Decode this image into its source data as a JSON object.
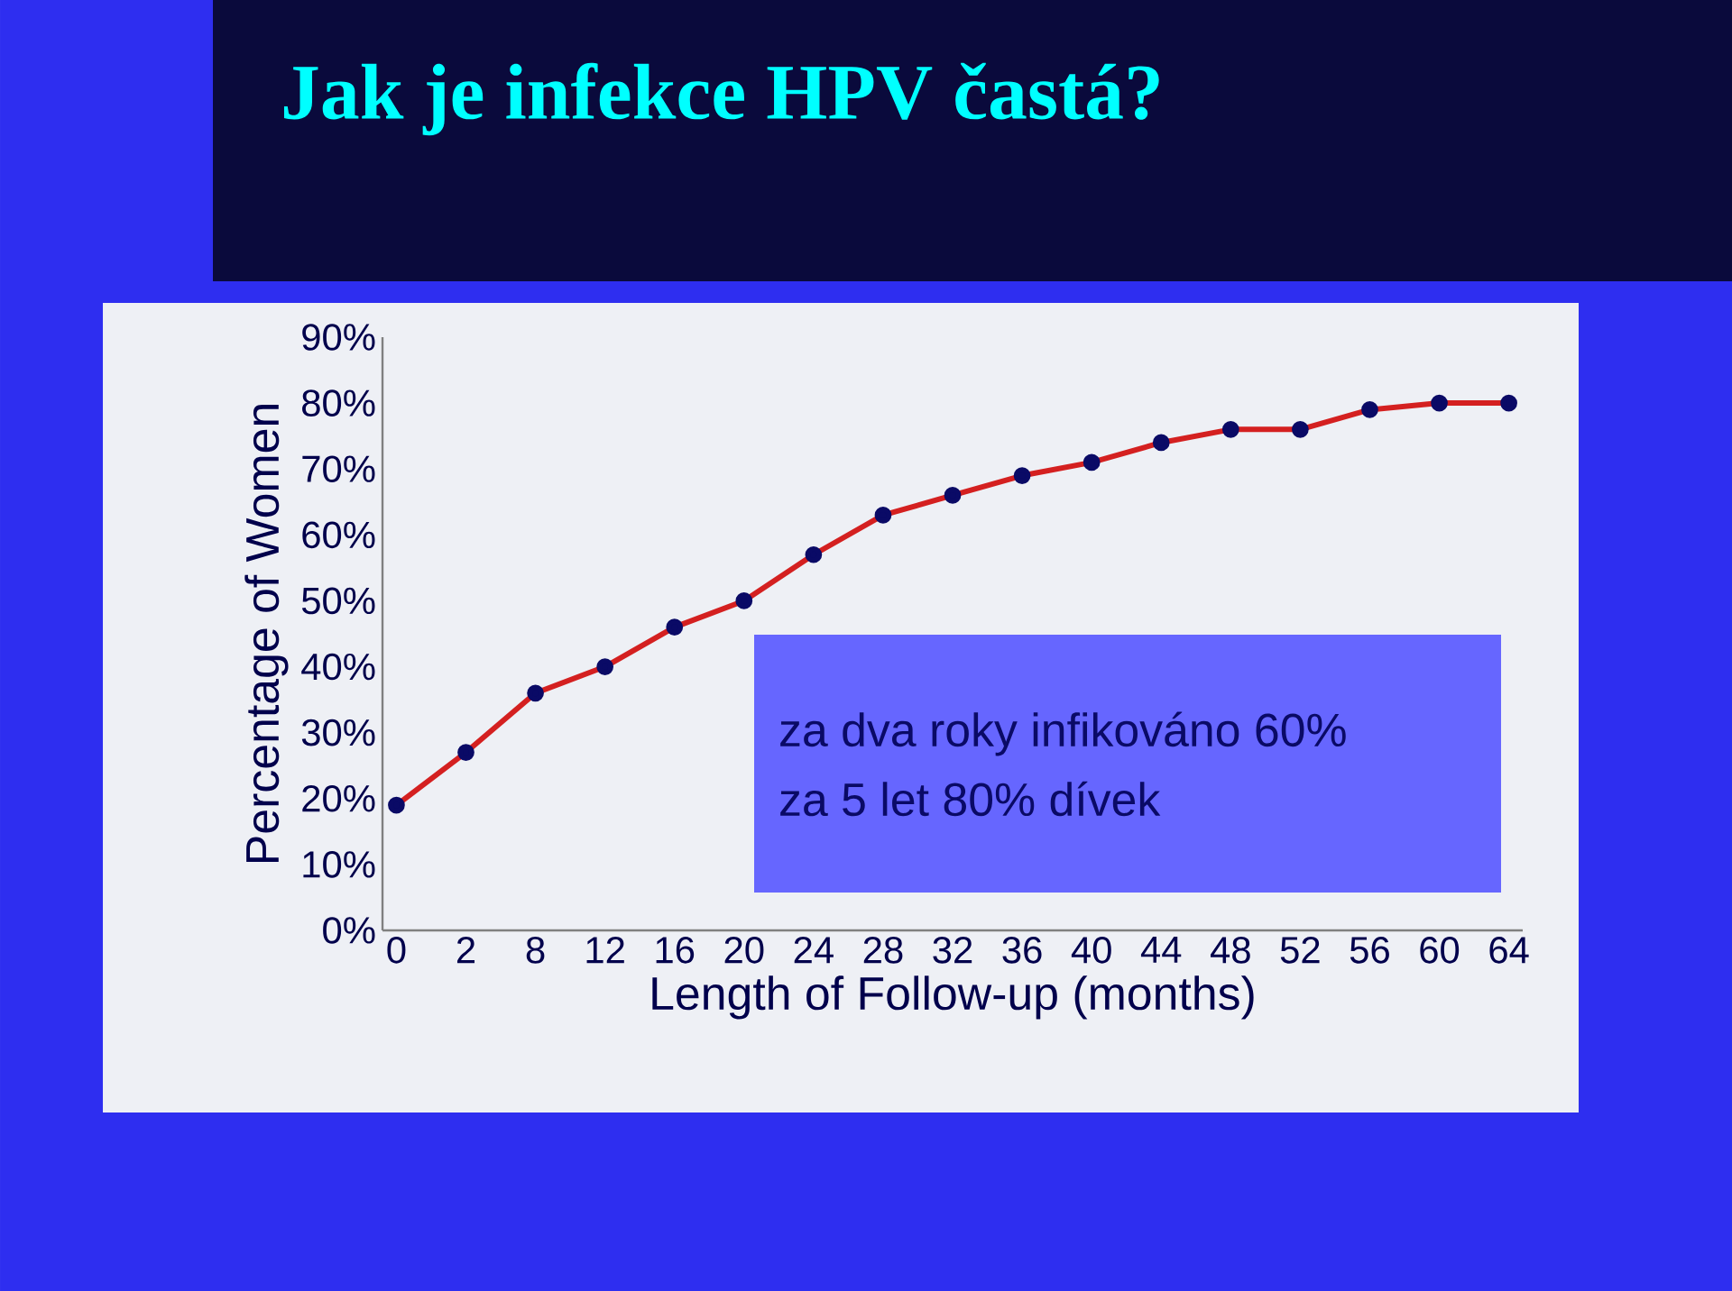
{
  "chart_data": {
    "type": "line",
    "title": "Jak je infekce HPV častá?",
    "xlabel": "Length of Follow-up (months)",
    "ylabel": "Percentage of Women",
    "categories": [
      "0",
      "2",
      "8",
      "12",
      "16",
      "20",
      "24",
      "28",
      "32",
      "36",
      "40",
      "44",
      "48",
      "52",
      "56",
      "60",
      "64"
    ],
    "series": [
      {
        "color": "#d42020",
        "values": [
          19,
          27,
          36,
          40,
          46,
          50,
          57,
          63,
          66,
          69,
          71,
          74,
          76,
          76,
          79,
          80,
          80
        ]
      }
    ],
    "ylim": [
      0,
      90
    ],
    "yticks": [
      {
        "value": 0,
        "label": "0%"
      },
      {
        "value": 10,
        "label": "10%"
      },
      {
        "value": 20,
        "label": "20%"
      },
      {
        "value": 30,
        "label": "30%"
      },
      {
        "value": 40,
        "label": "40%"
      },
      {
        "value": 50,
        "label": "50%"
      },
      {
        "value": 60,
        "label": "60%"
      },
      {
        "value": 70,
        "label": "70%"
      },
      {
        "value": 80,
        "label": "80%"
      },
      {
        "value": 90,
        "label": "90%"
      }
    ],
    "marker": "circle",
    "line_style": "solid",
    "grid": false,
    "annotations": [
      "za dva roky infikováno 60%",
      "za 5 let 80% dívek"
    ]
  }
}
